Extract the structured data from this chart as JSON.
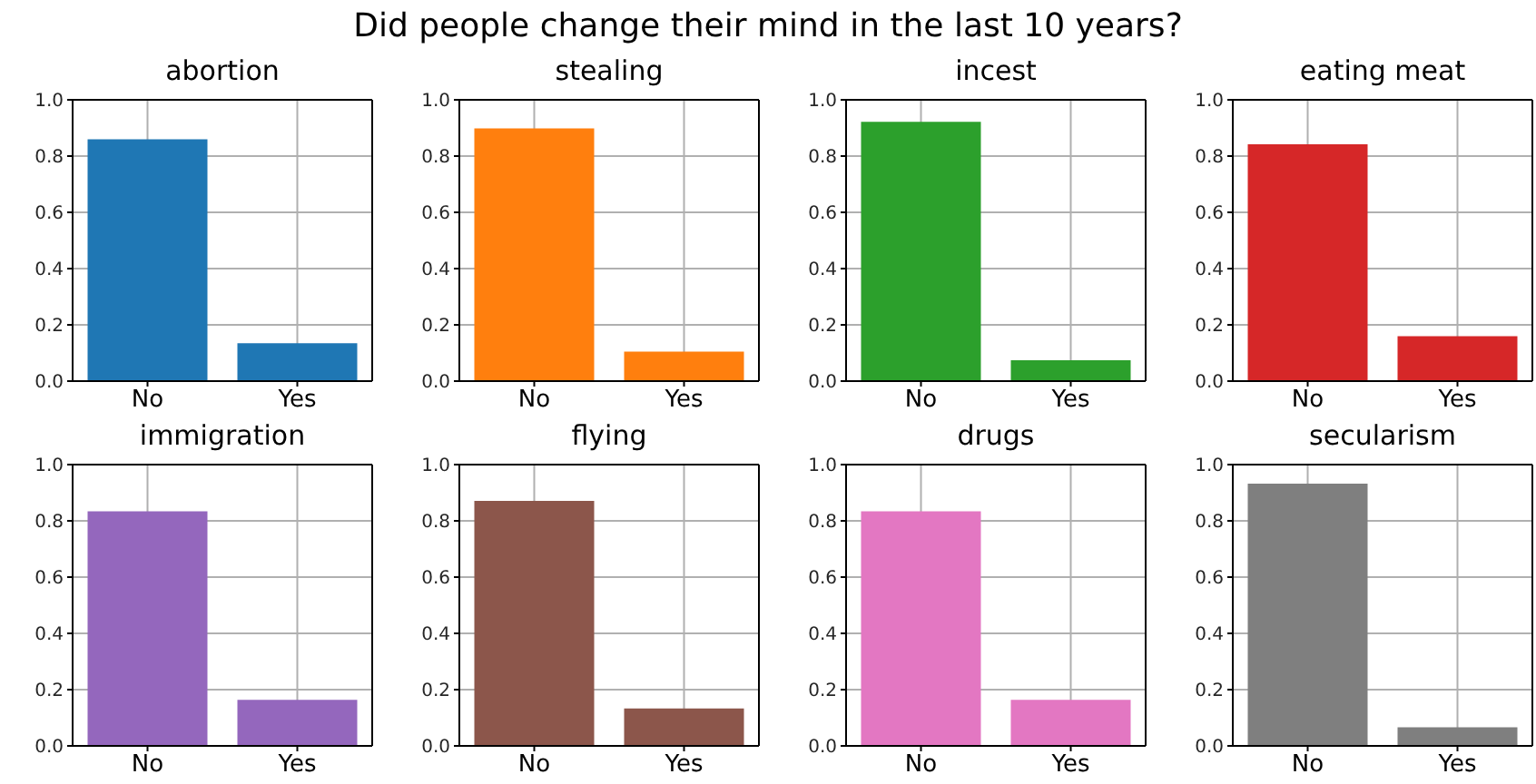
{
  "chart_data": [
    {
      "type": "bar",
      "title": "abortion",
      "annotations": [
        "Did people change their mind in the last 10 years?"
      ],
      "categories": [
        "No",
        "Yes"
      ],
      "values": [
        0.86,
        0.135
      ],
      "color": "#1f77b4",
      "ylim": [
        0,
        1
      ],
      "yticks": [
        {
          "value": 0,
          "label": "0.0"
        },
        {
          "value": 0.2,
          "label": "0.2"
        },
        {
          "value": 0.4,
          "label": "0.4"
        },
        {
          "value": 0.6,
          "label": "0.6"
        },
        {
          "value": 0.8,
          "label": "0.8"
        },
        {
          "value": 1,
          "label": "1.0"
        }
      ],
      "grid": true
    },
    {
      "type": "bar",
      "title": "stealing",
      "categories": [
        "No",
        "Yes"
      ],
      "values": [
        0.898,
        0.105
      ],
      "color": "#ff7f0e",
      "ylim": [
        0,
        1
      ],
      "yticks": [
        {
          "value": 0,
          "label": "0.0"
        },
        {
          "value": 0.2,
          "label": "0.2"
        },
        {
          "value": 0.4,
          "label": "0.4"
        },
        {
          "value": 0.6,
          "label": "0.6"
        },
        {
          "value": 0.8,
          "label": "0.8"
        },
        {
          "value": 1,
          "label": "1.0"
        }
      ],
      "grid": true
    },
    {
      "type": "bar",
      "title": "incest",
      "categories": [
        "No",
        "Yes"
      ],
      "values": [
        0.922,
        0.074
      ],
      "color": "#2ca02c",
      "ylim": [
        0,
        1
      ],
      "yticks": [
        {
          "value": 0,
          "label": "0.0"
        },
        {
          "value": 0.2,
          "label": "0.2"
        },
        {
          "value": 0.4,
          "label": "0.4"
        },
        {
          "value": 0.6,
          "label": "0.6"
        },
        {
          "value": 0.8,
          "label": "0.8"
        },
        {
          "value": 1,
          "label": "1.0"
        }
      ],
      "grid": true
    },
    {
      "type": "bar",
      "title": "eating meat",
      "categories": [
        "No",
        "Yes"
      ],
      "values": [
        0.842,
        0.16
      ],
      "color": "#d62728",
      "ylim": [
        0,
        1
      ],
      "yticks": [
        {
          "value": 0,
          "label": "0.0"
        },
        {
          "value": 0.2,
          "label": "0.2"
        },
        {
          "value": 0.4,
          "label": "0.4"
        },
        {
          "value": 0.6,
          "label": "0.6"
        },
        {
          "value": 0.8,
          "label": "0.8"
        },
        {
          "value": 1,
          "label": "1.0"
        }
      ],
      "grid": true
    },
    {
      "type": "bar",
      "title": "immigration",
      "categories": [
        "No",
        "Yes"
      ],
      "values": [
        0.834,
        0.164
      ],
      "color": "#9467bd",
      "ylim": [
        0,
        1
      ],
      "yticks": [
        {
          "value": 0,
          "label": "0.0"
        },
        {
          "value": 0.2,
          "label": "0.2"
        },
        {
          "value": 0.4,
          "label": "0.4"
        },
        {
          "value": 0.6,
          "label": "0.6"
        },
        {
          "value": 0.8,
          "label": "0.8"
        },
        {
          "value": 1,
          "label": "1.0"
        }
      ],
      "grid": true
    },
    {
      "type": "bar",
      "title": "flying",
      "categories": [
        "No",
        "Yes"
      ],
      "values": [
        0.871,
        0.133
      ],
      "color": "#8c564b",
      "ylim": [
        0,
        1
      ],
      "yticks": [
        {
          "value": 0,
          "label": "0.0"
        },
        {
          "value": 0.2,
          "label": "0.2"
        },
        {
          "value": 0.4,
          "label": "0.4"
        },
        {
          "value": 0.6,
          "label": "0.6"
        },
        {
          "value": 0.8,
          "label": "0.8"
        },
        {
          "value": 1,
          "label": "1.0"
        }
      ],
      "grid": true
    },
    {
      "type": "bar",
      "title": "drugs",
      "categories": [
        "No",
        "Yes"
      ],
      "values": [
        0.834,
        0.164
      ],
      "color": "#e377c2",
      "ylim": [
        0,
        1
      ],
      "yticks": [
        {
          "value": 0,
          "label": "0.0"
        },
        {
          "value": 0.2,
          "label": "0.2"
        },
        {
          "value": 0.4,
          "label": "0.4"
        },
        {
          "value": 0.6,
          "label": "0.6"
        },
        {
          "value": 0.8,
          "label": "0.8"
        },
        {
          "value": 1,
          "label": "1.0"
        }
      ],
      "grid": true
    },
    {
      "type": "bar",
      "title": "secularism",
      "categories": [
        "No",
        "Yes"
      ],
      "values": [
        0.932,
        0.066
      ],
      "color": "#7f7f7f",
      "ylim": [
        0,
        1
      ],
      "yticks": [
        {
          "value": 0,
          "label": "0.0"
        },
        {
          "value": 0.2,
          "label": "0.2"
        },
        {
          "value": 0.4,
          "label": "0.4"
        },
        {
          "value": 0.6,
          "label": "0.6"
        },
        {
          "value": 0.8,
          "label": "0.8"
        },
        {
          "value": 1,
          "label": "1.0"
        }
      ],
      "grid": true
    }
  ]
}
